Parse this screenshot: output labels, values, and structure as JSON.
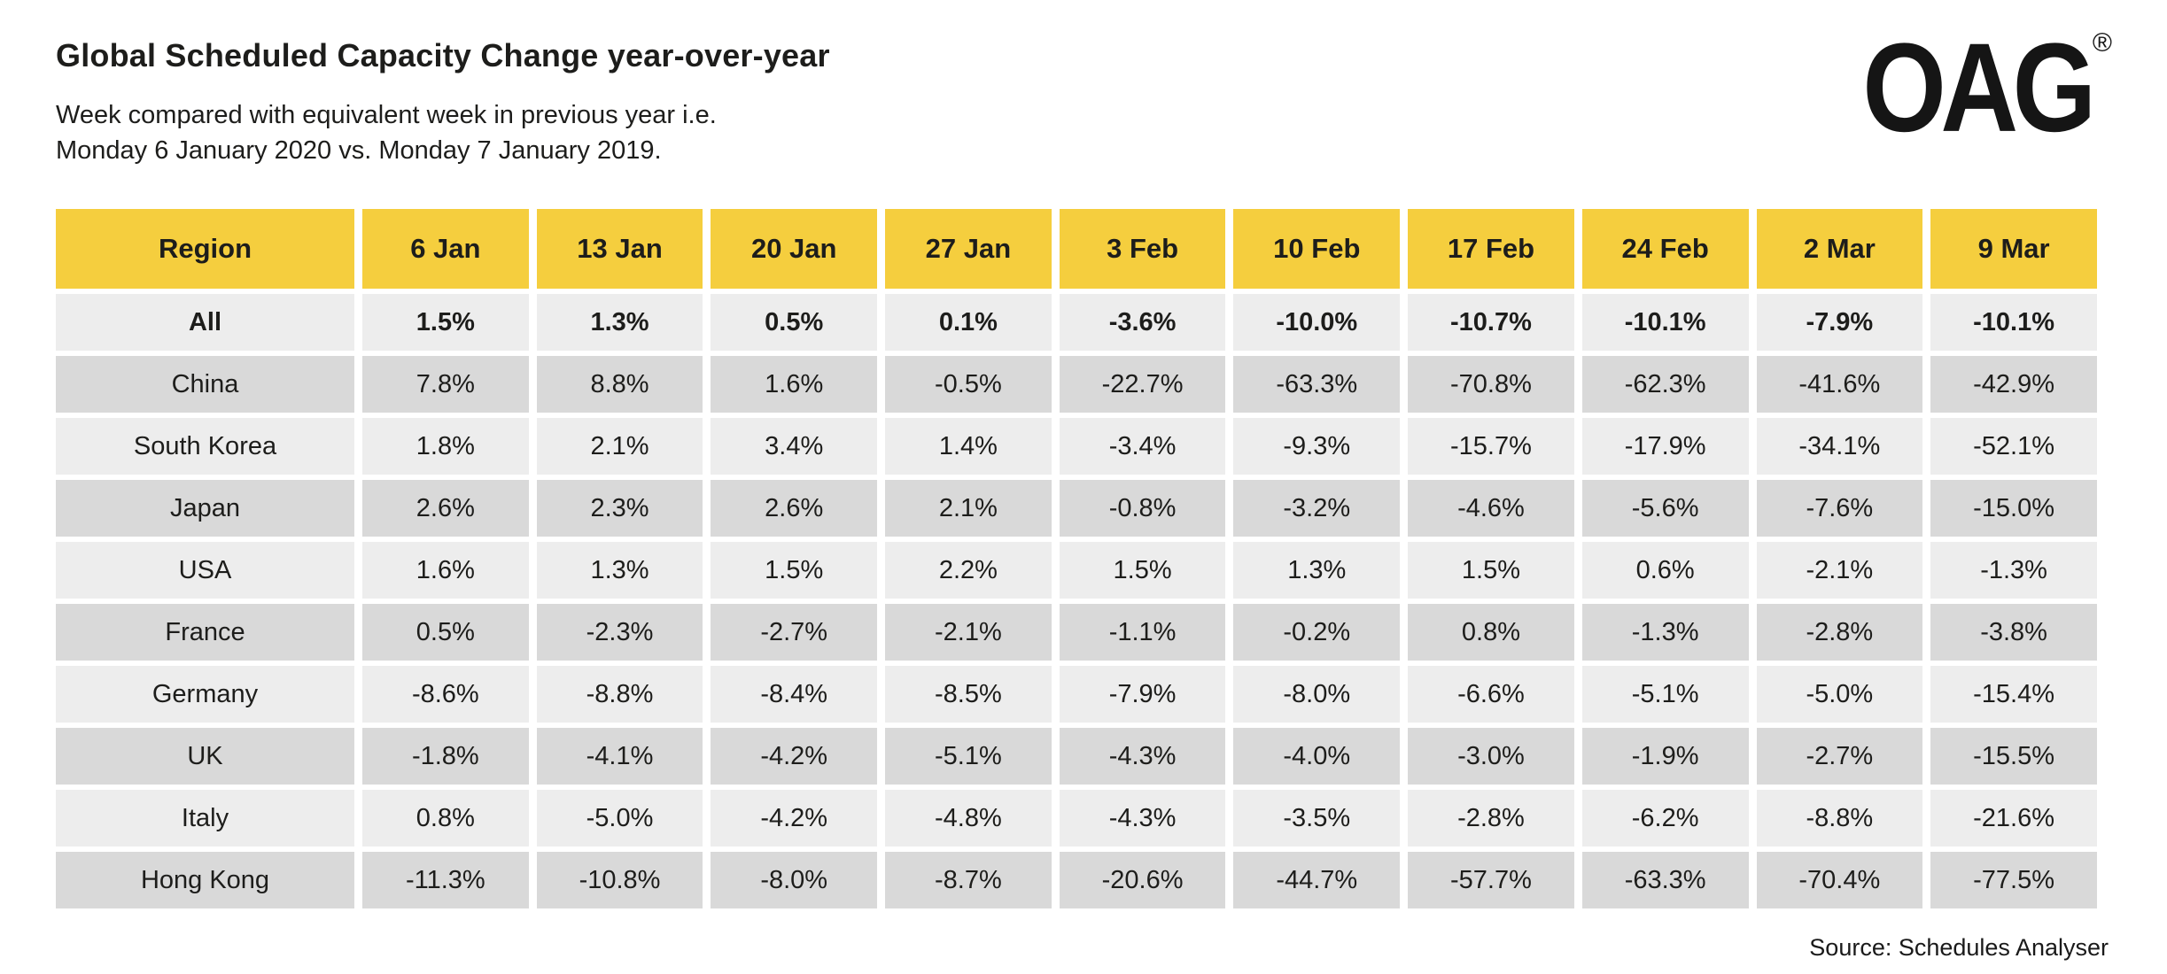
{
  "page": {
    "title": "Global Scheduled Capacity Change year-over-year",
    "subtitle_line1": "Week compared with equivalent week in previous year i.e.",
    "subtitle_line2": "Monday 6 January 2020 vs. Monday 7 January 2019.",
    "source": "Source: Schedules Analyser",
    "logo_text": "OAG",
    "logo_registered": "®"
  },
  "colors": {
    "header_yellow": "#F5CE3E",
    "row_light": "#EDEDED",
    "row_dark": "#D9D9D9",
    "text": "#1D1D1B"
  },
  "chart_data": {
    "type": "table",
    "title": "Global Scheduled Capacity Change year-over-year",
    "subtitle": "Week compared with equivalent week in previous year i.e. Monday 6 January 2020 vs. Monday 7 January 2019.",
    "source": "Source: Schedules Analyser",
    "columns": [
      "Region",
      "6 Jan",
      "13 Jan",
      "20 Jan",
      "27 Jan",
      "3 Feb",
      "10 Feb",
      "17 Feb",
      "24 Feb",
      "2 Mar",
      "9 Mar"
    ],
    "rows": [
      {
        "region": "All",
        "bold": true,
        "values": [
          "1.5%",
          "1.3%",
          "0.5%",
          "0.1%",
          "-3.6%",
          "-10.0%",
          "-10.7%",
          "-10.1%",
          "-7.9%",
          "-10.1%"
        ]
      },
      {
        "region": "China",
        "bold": false,
        "values": [
          "7.8%",
          "8.8%",
          "1.6%",
          "-0.5%",
          "-22.7%",
          "-63.3%",
          "-70.8%",
          "-62.3%",
          "-41.6%",
          "-42.9%"
        ]
      },
      {
        "region": "South Korea",
        "bold": false,
        "values": [
          "1.8%",
          "2.1%",
          "3.4%",
          "1.4%",
          "-3.4%",
          "-9.3%",
          "-15.7%",
          "-17.9%",
          "-34.1%",
          "-52.1%"
        ]
      },
      {
        "region": "Japan",
        "bold": false,
        "values": [
          "2.6%",
          "2.3%",
          "2.6%",
          "2.1%",
          "-0.8%",
          "-3.2%",
          "-4.6%",
          "-5.6%",
          "-7.6%",
          "-15.0%"
        ]
      },
      {
        "region": "USA",
        "bold": false,
        "values": [
          "1.6%",
          "1.3%",
          "1.5%",
          "2.2%",
          "1.5%",
          "1.3%",
          "1.5%",
          "0.6%",
          "-2.1%",
          "-1.3%"
        ]
      },
      {
        "region": "France",
        "bold": false,
        "values": [
          "0.5%",
          "-2.3%",
          "-2.7%",
          "-2.1%",
          "-1.1%",
          "-0.2%",
          "0.8%",
          "-1.3%",
          "-2.8%",
          "-3.8%"
        ]
      },
      {
        "region": "Germany",
        "bold": false,
        "values": [
          "-8.6%",
          "-8.8%",
          "-8.4%",
          "-8.5%",
          "-7.9%",
          "-8.0%",
          "-6.6%",
          "-5.1%",
          "-5.0%",
          "-15.4%"
        ]
      },
      {
        "region": "UK",
        "bold": false,
        "values": [
          "-1.8%",
          "-4.1%",
          "-4.2%",
          "-5.1%",
          "-4.3%",
          "-4.0%",
          "-3.0%",
          "-1.9%",
          "-2.7%",
          "-15.5%"
        ]
      },
      {
        "region": "Italy",
        "bold": false,
        "values": [
          "0.8%",
          "-5.0%",
          "-4.2%",
          "-4.8%",
          "-4.3%",
          "-3.5%",
          "-2.8%",
          "-6.2%",
          "-8.8%",
          "-21.6%"
        ]
      },
      {
        "region": "Hong Kong",
        "bold": false,
        "values": [
          "-11.3%",
          "-10.8%",
          "-8.0%",
          "-8.7%",
          "-20.6%",
          "-44.7%",
          "-57.7%",
          "-63.3%",
          "-70.4%",
          "-77.5%"
        ]
      }
    ],
    "layout": {
      "header_background": "#F5CE3E",
      "row_stripe_colors": [
        "#EDEDED",
        "#D9D9D9"
      ],
      "first_row_bold": true
    }
  }
}
